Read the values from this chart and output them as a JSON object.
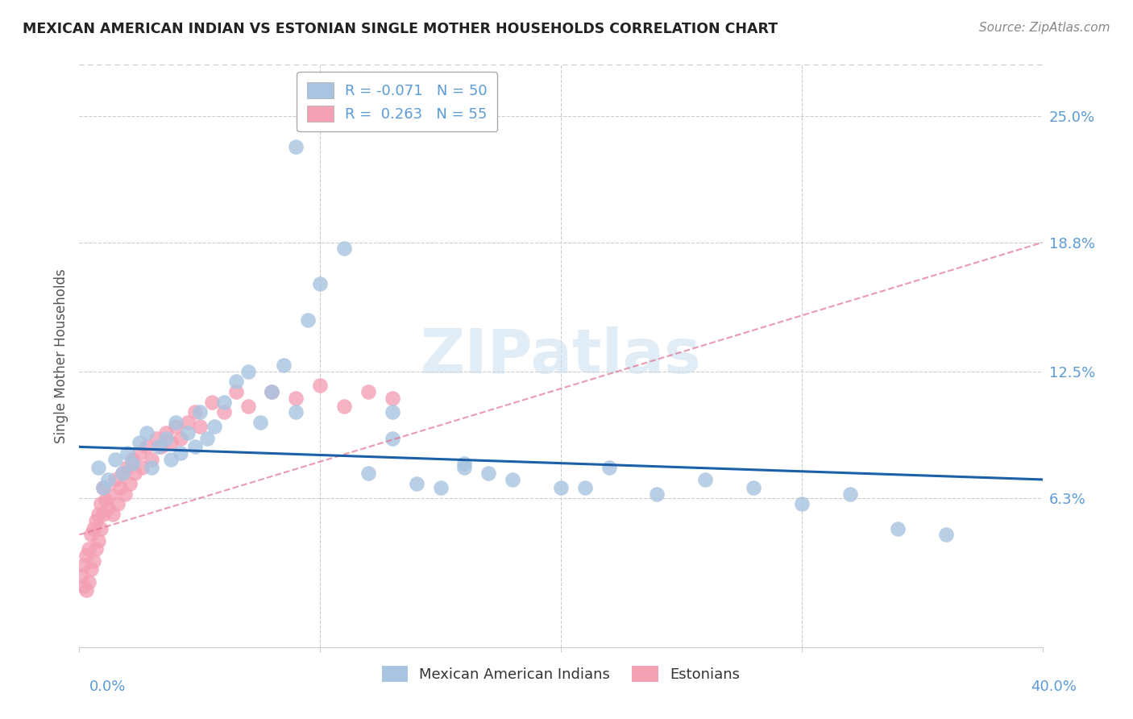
{
  "title": "MEXICAN AMERICAN INDIAN VS ESTONIAN SINGLE MOTHER HOUSEHOLDS CORRELATION CHART",
  "source": "Source: ZipAtlas.com",
  "ylabel": "Single Mother Households",
  "ytick_labels": [
    "6.3%",
    "12.5%",
    "18.8%",
    "25.0%"
  ],
  "ytick_values": [
    0.063,
    0.125,
    0.188,
    0.25
  ],
  "xlim": [
    0.0,
    0.4
  ],
  "ylim": [
    -0.01,
    0.275
  ],
  "legend_r_blue": "-0.071",
  "legend_n_blue": "50",
  "legend_r_pink": "0.263",
  "legend_n_pink": "55",
  "blue_color": "#a8c4e0",
  "pink_color": "#f4a0b5",
  "line_blue_color": "#1a5fa8",
  "line_pink_color": "#e07090",
  "watermark_color": "#cce0f0",
  "blue_scatter_x": [
    0.008,
    0.01,
    0.012,
    0.015,
    0.018,
    0.02,
    0.022,
    0.025,
    0.028,
    0.03,
    0.033,
    0.036,
    0.038,
    0.04,
    0.042,
    0.045,
    0.048,
    0.05,
    0.053,
    0.056,
    0.06,
    0.065,
    0.07,
    0.075,
    0.08,
    0.085,
    0.09,
    0.095,
    0.1,
    0.11,
    0.12,
    0.13,
    0.14,
    0.15,
    0.16,
    0.17,
    0.18,
    0.2,
    0.22,
    0.24,
    0.26,
    0.28,
    0.3,
    0.32,
    0.34,
    0.36,
    0.13,
    0.09,
    0.16,
    0.21
  ],
  "blue_scatter_y": [
    0.078,
    0.068,
    0.072,
    0.082,
    0.075,
    0.085,
    0.08,
    0.09,
    0.095,
    0.078,
    0.088,
    0.092,
    0.082,
    0.1,
    0.085,
    0.095,
    0.088,
    0.105,
    0.092,
    0.098,
    0.11,
    0.12,
    0.125,
    0.1,
    0.115,
    0.128,
    0.105,
    0.15,
    0.168,
    0.185,
    0.075,
    0.092,
    0.07,
    0.068,
    0.08,
    0.075,
    0.072,
    0.068,
    0.078,
    0.065,
    0.072,
    0.068,
    0.06,
    0.065,
    0.048,
    0.045,
    0.105,
    0.235,
    0.078,
    0.068
  ],
  "pink_scatter_x": [
    0.001,
    0.002,
    0.002,
    0.003,
    0.003,
    0.004,
    0.004,
    0.005,
    0.005,
    0.006,
    0.006,
    0.007,
    0.007,
    0.008,
    0.008,
    0.009,
    0.009,
    0.01,
    0.01,
    0.011,
    0.012,
    0.013,
    0.014,
    0.015,
    0.016,
    0.017,
    0.018,
    0.019,
    0.02,
    0.021,
    0.022,
    0.023,
    0.025,
    0.026,
    0.028,
    0.03,
    0.032,
    0.034,
    0.036,
    0.038,
    0.04,
    0.042,
    0.045,
    0.048,
    0.05,
    0.055,
    0.06,
    0.065,
    0.07,
    0.08,
    0.09,
    0.1,
    0.11,
    0.12,
    0.13
  ],
  "pink_scatter_y": [
    0.025,
    0.02,
    0.03,
    0.018,
    0.035,
    0.022,
    0.038,
    0.028,
    0.045,
    0.032,
    0.048,
    0.038,
    0.052,
    0.042,
    0.055,
    0.048,
    0.06,
    0.055,
    0.068,
    0.062,
    0.058,
    0.065,
    0.055,
    0.072,
    0.06,
    0.068,
    0.075,
    0.065,
    0.078,
    0.07,
    0.082,
    0.075,
    0.085,
    0.078,
    0.088,
    0.082,
    0.092,
    0.088,
    0.095,
    0.09,
    0.098,
    0.092,
    0.1,
    0.105,
    0.098,
    0.11,
    0.105,
    0.115,
    0.108,
    0.115,
    0.112,
    0.118,
    0.108,
    0.115,
    0.112
  ],
  "blue_line_x": [
    0.0,
    0.4
  ],
  "blue_line_y": [
    0.088,
    0.072
  ],
  "pink_line_x": [
    0.0,
    0.4
  ],
  "pink_line_y": [
    0.045,
    0.188
  ]
}
